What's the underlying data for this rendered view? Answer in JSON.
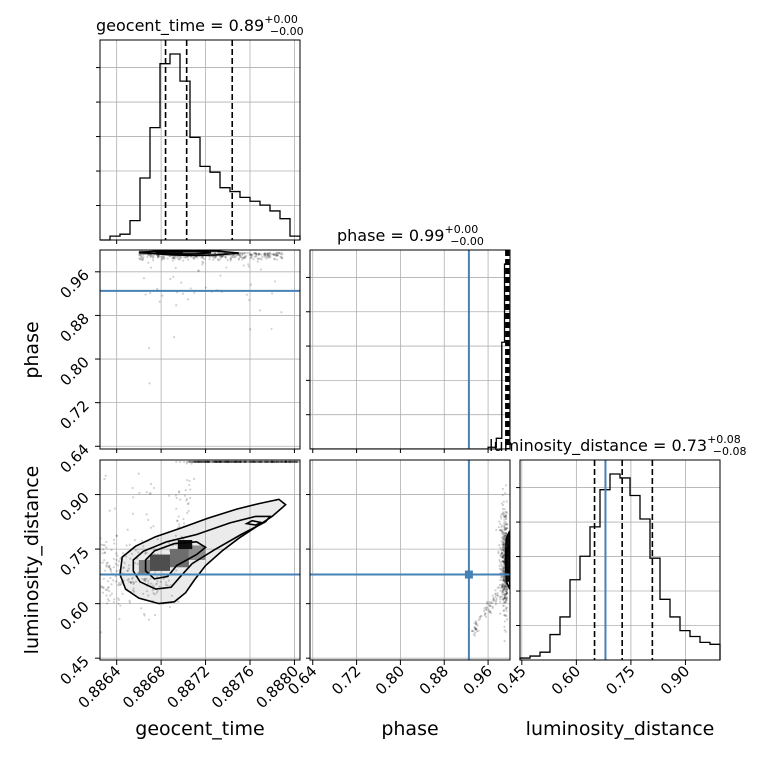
{
  "chart_data": {
    "type": "corner",
    "parameters": [
      {
        "name": "geocent_time",
        "axis_label": "geocent_time",
        "title": "geocent_time = 0.89",
        "title_sup": "+0.00",
        "title_sub": "−0.00",
        "range": [
          0.88625,
          0.88805
        ],
        "ticks": [
          0.8864,
          0.8868,
          0.8872,
          0.8876,
          0.888
        ],
        "tick_labels": [
          "0.8864",
          "0.8868",
          "0.8872",
          "0.8876",
          "0.8880"
        ],
        "quantiles": [
          0.88684,
          0.88703,
          0.88744
        ],
        "injection": null,
        "hist_edges": [
          0.88625,
          0.88634,
          0.88643,
          0.88652,
          0.88661,
          0.8867,
          0.88679,
          0.88688,
          0.88697,
          0.88706,
          0.88715,
          0.88724,
          0.88733,
          0.88742,
          0.88751,
          0.8876,
          0.88769,
          0.88778,
          0.88787,
          0.88796,
          0.88805
        ],
        "hist_counts": [
          0,
          2,
          3,
          10,
          32,
          58,
          91,
          96,
          82,
          53,
          38,
          35,
          27,
          25,
          22,
          20,
          18,
          15,
          11,
          2
        ]
      },
      {
        "name": "phase",
        "axis_label": "phase",
        "title": "phase = 0.99",
        "title_sup": "+0.00",
        "title_sub": "−0.00",
        "range": [
          0.635,
          1.0
        ],
        "ticks": [
          0.64,
          0.72,
          0.8,
          0.88,
          0.96
        ],
        "tick_labels": [
          "0.64",
          "0.72",
          "0.80",
          "0.88",
          "0.96"
        ],
        "quantiles": [
          0.9925,
          0.995,
          0.9975
        ],
        "injection": 0.925,
        "hist_edges": [
          0.635,
          0.96,
          0.975,
          0.985,
          0.99,
          1.0
        ],
        "hist_counts": [
          0,
          0.5,
          3,
          30,
          52
        ]
      },
      {
        "name": "luminosity_distance",
        "axis_label": "luminosity_distance",
        "title": "luminosity_distance = 0.73",
        "title_sup": "+0.08",
        "title_sub": "−0.08",
        "range": [
          0.445,
          0.995
        ],
        "ticks": [
          0.45,
          0.6,
          0.75,
          0.9
        ],
        "tick_labels": [
          "0.45",
          "0.60",
          "0.75",
          "0.90"
        ],
        "quantiles": [
          0.65,
          0.726,
          0.809
        ],
        "injection": 0.68,
        "hist_edges": [
          0.445,
          0.4725,
          0.5,
          0.5275,
          0.555,
          0.5825,
          0.61,
          0.6375,
          0.665,
          0.6925,
          0.72,
          0.7475,
          0.775,
          0.8025,
          0.83,
          0.8575,
          0.885,
          0.9125,
          0.94,
          0.9675,
          0.995
        ],
        "hist_counts": [
          1,
          2,
          4,
          13,
          22,
          41,
          53,
          68,
          87,
          95,
          93,
          84,
          72,
          52,
          31,
          22,
          15,
          12,
          9,
          8
        ]
      }
    ],
    "contours_2d": [
      {
        "x_param": "geocent_time",
        "y_param": "phase",
        "levels": [
          [
            [
              0.8866,
              0.9955
            ],
            [
              0.8869,
              0.991
            ],
            [
              0.8871,
              0.99
            ],
            [
              0.8873,
              0.991
            ],
            [
              0.8875,
              0.9945
            ],
            [
              0.8873,
              0.998
            ],
            [
              0.8868,
              0.9985
            ],
            [
              0.8866,
              0.9955
            ]
          ],
          [
            [
              0.88675,
              0.995
            ],
            [
              0.8869,
              0.9925
            ],
            [
              0.8871,
              0.9925
            ],
            [
              0.88725,
              0.995
            ],
            [
              0.8871,
              0.998
            ],
            [
              0.8869,
              0.998
            ],
            [
              0.88675,
              0.995
            ]
          ]
        ]
      },
      {
        "x_param": "geocent_time",
        "y_param": "luminosity_distance",
        "levels": [
          [
            [
              0.88643,
              0.68
            ],
            [
              0.88648,
              0.64
            ],
            [
              0.8866,
              0.615
            ],
            [
              0.88678,
              0.6
            ],
            [
              0.88692,
              0.605
            ],
            [
              0.88702,
              0.63
            ],
            [
              0.8871,
              0.665
            ],
            [
              0.8872,
              0.705
            ],
            [
              0.88735,
              0.745
            ],
            [
              0.8875,
              0.78
            ],
            [
              0.88766,
              0.812
            ],
            [
              0.8878,
              0.84
            ],
            [
              0.88792,
              0.872
            ],
            [
              0.88786,
              0.887
            ],
            [
              0.88768,
              0.875
            ],
            [
              0.88748,
              0.86
            ],
            [
              0.88722,
              0.835
            ],
            [
              0.88698,
              0.808
            ],
            [
              0.88675,
              0.784
            ],
            [
              0.88657,
              0.758
            ],
            [
              0.88645,
              0.728
            ],
            [
              0.88643,
              0.68
            ]
          ],
          [
            [
              0.88655,
              0.69
            ],
            [
              0.88661,
              0.66
            ],
            [
              0.88675,
              0.64
            ],
            [
              0.88689,
              0.645
            ],
            [
              0.88696,
              0.67
            ],
            [
              0.88708,
              0.71
            ],
            [
              0.88728,
              0.748
            ],
            [
              0.88752,
              0.79
            ],
            [
              0.88774,
              0.825
            ],
            [
              0.88778,
              0.84
            ],
            [
              0.88765,
              0.84
            ],
            [
              0.88742,
              0.822
            ],
            [
              0.88712,
              0.79
            ],
            [
              0.88685,
              0.77
            ],
            [
              0.88664,
              0.744
            ],
            [
              0.88655,
              0.72
            ],
            [
              0.88655,
              0.69
            ]
          ],
          [
            [
              0.88666,
              0.69
            ],
            [
              0.88674,
              0.668
            ],
            [
              0.88686,
              0.675
            ],
            [
              0.88694,
              0.705
            ],
            [
              0.88712,
              0.735
            ],
            [
              0.8872,
              0.755
            ],
            [
              0.88712,
              0.77
            ],
            [
              0.88692,
              0.765
            ],
            [
              0.88674,
              0.745
            ],
            [
              0.88666,
              0.72
            ],
            [
              0.88666,
              0.69
            ]
          ],
          [
            [
              0.88757,
              0.82
            ],
            [
              0.88765,
              0.816
            ],
            [
              0.8877,
              0.823
            ],
            [
              0.88762,
              0.828
            ],
            [
              0.88757,
              0.82
            ]
          ]
        ]
      },
      {
        "x_param": "phase",
        "y_param": "luminosity_distance",
        "levels": [
          [
            [
              0.9915,
              0.72
            ],
            [
              0.9935,
              0.66
            ],
            [
              0.9995,
              0.64
            ],
            [
              0.9995,
              0.8
            ],
            [
              0.9935,
              0.78
            ],
            [
              0.9915,
              0.72
            ]
          ],
          [
            [
              0.9935,
              0.72
            ],
            [
              0.995,
              0.69
            ],
            [
              0.9995,
              0.68
            ],
            [
              0.9995,
              0.76
            ],
            [
              0.995,
              0.75
            ],
            [
              0.9935,
              0.72
            ]
          ]
        ]
      }
    ]
  }
}
